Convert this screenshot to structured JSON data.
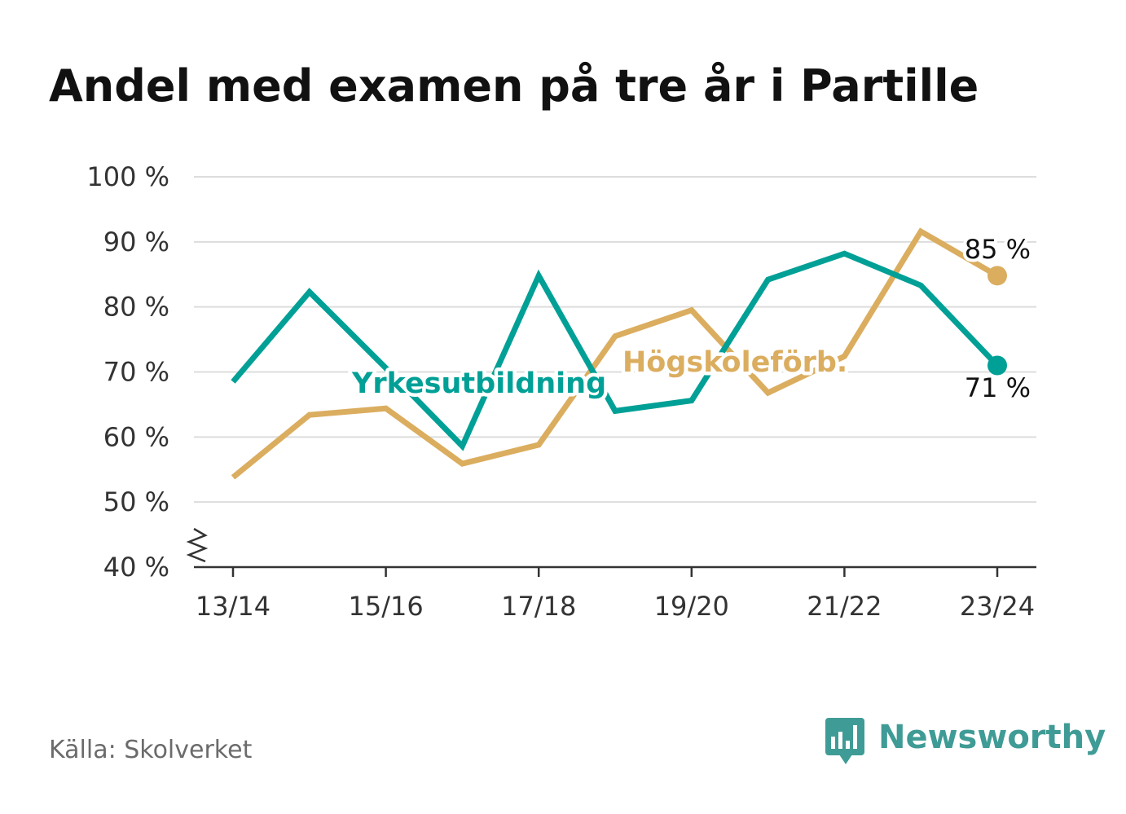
{
  "chart_data": {
    "type": "line",
    "title": "Andel med examen på tre år i Partille",
    "categories": [
      "13/14",
      "14/15",
      "15/16",
      "16/17",
      "17/18",
      "18/19",
      "19/20",
      "20/21",
      "21/22",
      "22/23",
      "23/24"
    ],
    "x_tick_labels": [
      "13/14",
      "15/16",
      "17/18",
      "19/20",
      "21/22",
      "23/24"
    ],
    "y_ticks": [
      40,
      50,
      60,
      70,
      80,
      90,
      100
    ],
    "y_tick_labels": [
      "40 %",
      "50 %",
      "60 %",
      "70 %",
      "80 %",
      "90 %",
      "100 %"
    ],
    "ylim": [
      40,
      100
    ],
    "axis_break": true,
    "grid": true,
    "series": [
      {
        "name": "Yrkesutbildning",
        "color": "#00a096",
        "values": [
          68.5,
          82.3,
          70.6,
          58.6,
          84.8,
          64.0,
          65.6,
          84.2,
          88.2,
          83.3,
          71.0
        ],
        "end_label": "71 %"
      },
      {
        "name": "Högskoleförb.",
        "color": "#dbad5f",
        "values": [
          53.8,
          63.4,
          64.4,
          55.9,
          58.8,
          75.5,
          79.5,
          66.8,
          72.4,
          91.6,
          84.8
        ],
        "end_label": "85 %"
      }
    ]
  },
  "footer": {
    "source": "Källa: Skolverket",
    "brand": "Newsworthy",
    "brand_color": "#3f9b95",
    "brand_icon": "bar-chart-speech-bubble-icon"
  }
}
